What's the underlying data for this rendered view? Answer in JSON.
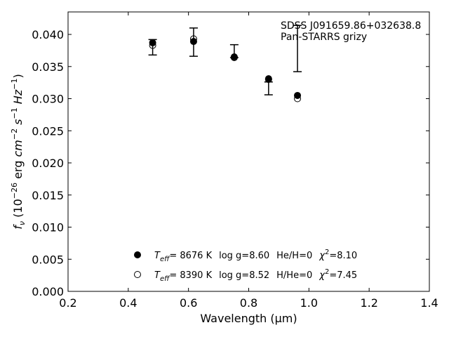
{
  "chart_data": {
    "type": "scatter",
    "xlabel": "Wavelength (μm)",
    "ylabel_parts": {
      "f": "f",
      "nu": "ν",
      "unit_open": " (10",
      "exp1": "−26",
      "erg": " erg ",
      "cm": "cm",
      "exp2": "−2",
      "s": " s",
      "exp3": "−1",
      "hz": " Hz",
      "exp4": "−1",
      "close": ")"
    },
    "xlim": [
      0.2,
      1.4
    ],
    "ylim": [
      0.0,
      0.0435
    ],
    "xticks": [
      0.2,
      0.4,
      0.6,
      0.8,
      1.0,
      1.2,
      1.4
    ],
    "xtick_labels": [
      "0.2",
      "0.4",
      "0.6",
      "0.8",
      "1.0",
      "1.2",
      "1.4"
    ],
    "yticks": [
      0.0,
      0.005,
      0.01,
      0.015,
      0.02,
      0.025,
      0.03,
      0.035,
      0.04
    ],
    "ytick_labels": [
      "0.000",
      "0.005",
      "0.010",
      "0.015",
      "0.020",
      "0.025",
      "0.030",
      "0.035",
      "0.040"
    ],
    "grid": false,
    "annotation": {
      "line1": "SDSS J091659.86+032638.8",
      "line2": "Pan-STARRS grizy"
    },
    "observed": {
      "x": [
        0.481,
        0.617,
        0.752,
        0.866,
        0.962
      ],
      "y": [
        0.038,
        0.0388,
        0.0374,
        0.0316,
        0.0378
      ],
      "yerr": [
        0.0012,
        0.0022,
        0.001,
        0.001,
        0.0036
      ]
    },
    "series": [
      {
        "marker": "filled",
        "x": [
          0.481,
          0.617,
          0.752,
          0.866,
          0.962
        ],
        "y": [
          0.0387,
          0.0389,
          0.0365,
          0.0331,
          0.0305
        ],
        "legend": {
          "teff_sym": "T",
          "teff_sub": "eff",
          "teff_val": "= 8676 K",
          "logg": "log g=8.60",
          "comp": "He/H=0",
          "chi_sym": "χ",
          "chi_exp": "2",
          "chi_val": "=8.10"
        }
      },
      {
        "marker": "open",
        "x": [
          0.481,
          0.617,
          0.752,
          0.866,
          0.962
        ],
        "y": [
          0.0383,
          0.0393,
          0.0364,
          0.033,
          0.03
        ],
        "legend": {
          "teff_sym": "T",
          "teff_sub": "eff",
          "teff_val": "= 8390 K",
          "logg": "log g=8.52",
          "comp": "H/He=0",
          "chi_sym": "χ",
          "chi_exp": "2",
          "chi_val": "=7.45"
        }
      }
    ],
    "legend_placement": "lower-center"
  }
}
